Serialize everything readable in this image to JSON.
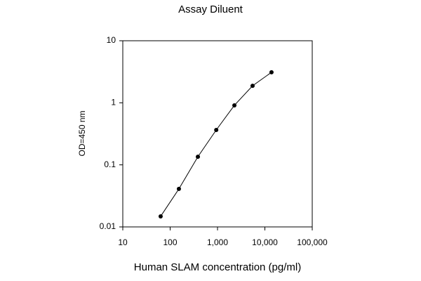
{
  "chart_data": {
    "type": "line",
    "title": "Assay Diluent",
    "x_label": "Human SLAM concentration (pg/ml)",
    "y_label": "OD=450 nm",
    "x": [
      63,
      153,
      385,
      940,
      2270,
      5500,
      13800
    ],
    "series": [
      {
        "color": "#000000",
        "values": [
          0.0148,
          0.041,
          0.135,
          0.365,
          0.91,
          1.88,
          3.1
        ]
      }
    ],
    "x_log": true,
    "y_log": true,
    "xlim": [
      10,
      100000
    ],
    "ylim": [
      0.01,
      10
    ],
    "xticks": [
      10,
      100,
      {
        "value": 1000,
        "label": "1,000"
      },
      {
        "value": 10000,
        "label": "10,000"
      },
      {
        "value": 100000,
        "label": "100,000"
      }
    ],
    "yticks": [
      0.01,
      0.1,
      1,
      10
    ]
  }
}
